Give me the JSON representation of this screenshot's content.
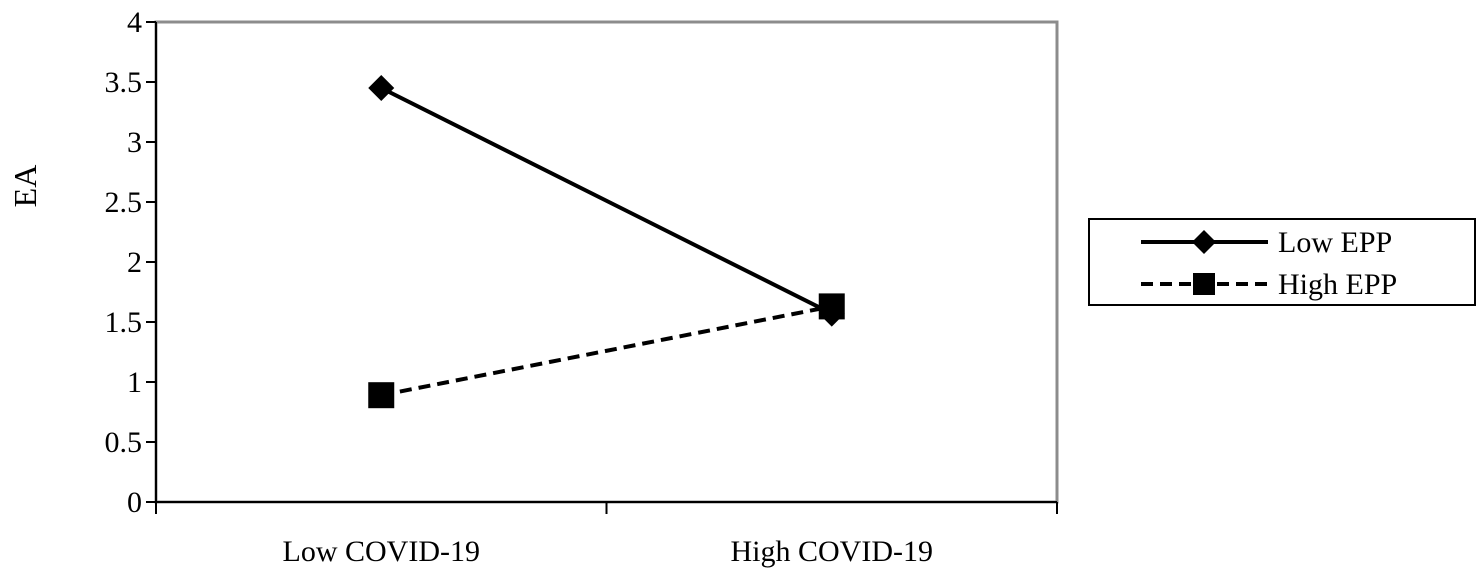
{
  "chart_data": {
    "type": "line",
    "title": "",
    "xlabel": "",
    "ylabel": "EA",
    "categories": [
      "Low COVID-19",
      "High COVID-19"
    ],
    "ylim": [
      0,
      4
    ],
    "yticks": [
      "0",
      "0.5",
      "1",
      "1.5",
      "2",
      "2.5",
      "3",
      "3.5",
      "4"
    ],
    "grid": false,
    "legend_position": "right",
    "series": [
      {
        "name": "Low EPP",
        "values": [
          3.45,
          1.57
        ],
        "marker": "diamond",
        "line_style": "solid",
        "color": "#000000"
      },
      {
        "name": "High EPP",
        "values": [
          0.89,
          1.63
        ],
        "marker": "square",
        "line_style": "dashed",
        "color": "#000000"
      }
    ]
  }
}
